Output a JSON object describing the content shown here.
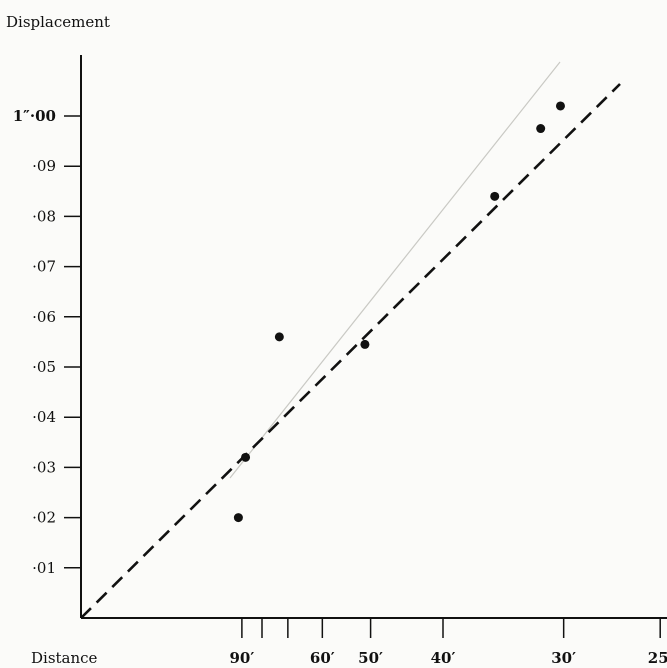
{
  "chart_data": {
    "type": "scatter",
    "title": "",
    "ylabel": "Displacement",
    "xlabel": "Distance",
    "x_scale": "reciprocal",
    "ylim": [
      0,
      0.112
    ],
    "grid": false,
    "y_ticks": [
      {
        "value": 0.01,
        "label": "·01"
      },
      {
        "value": 0.02,
        "label": "·02"
      },
      {
        "value": 0.03,
        "label": "·03"
      },
      {
        "value": 0.04,
        "label": "·04"
      },
      {
        "value": 0.05,
        "label": "·05"
      },
      {
        "value": 0.06,
        "label": "·06"
      },
      {
        "value": 0.07,
        "label": "·07"
      },
      {
        "value": 0.08,
        "label": "·08"
      },
      {
        "value": 0.09,
        "label": "·09"
      },
      {
        "value": 0.1,
        "label": "1″·00"
      }
    ],
    "x_tick_values": [
      90,
      80,
      70,
      60,
      50,
      40,
      30,
      25
    ],
    "x_tick_labels": [
      {
        "value": 90,
        "label": "90′"
      },
      {
        "value": 60,
        "label": "60′"
      },
      {
        "value": 50,
        "label": "50′"
      },
      {
        "value": 40,
        "label": "40′"
      },
      {
        "value": 30,
        "label": "30′"
      },
      {
        "value": 25,
        "label": "25′"
      }
    ],
    "points": [
      {
        "x": 92,
        "y": 0.02
      },
      {
        "x": 88,
        "y": 0.032
      },
      {
        "x": 73,
        "y": 0.056
      },
      {
        "x": 51,
        "y": 0.0545
      },
      {
        "x": 35,
        "y": 0.084
      },
      {
        "x": 31.5,
        "y": 0.0975
      },
      {
        "x": 30.2,
        "y": 0.102
      }
    ],
    "reference_line": {
      "style": "dashed",
      "through_origin": true,
      "slope_per_inv_ft": 2.8
    }
  }
}
